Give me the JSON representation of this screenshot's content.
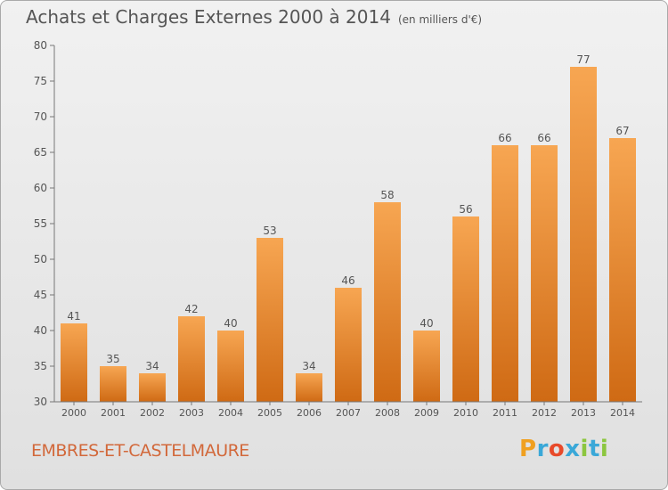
{
  "title": "Achats et Charges Externes 2000 à 2014",
  "subtitle": "(en milliers d'€)",
  "commune": "EMBRES-ET-CASTELMAURE",
  "brand": {
    "text": "Proxiti",
    "letters": [
      "P",
      "r",
      "o",
      "x",
      "i",
      "t",
      "i"
    ],
    "colors": [
      "#f0a020",
      "#3aa8d8",
      "#e84a2a",
      "#3aa8d8",
      "#8cc63f",
      "#3aa8d8",
      "#8cc63f"
    ]
  },
  "colors": {
    "bar_light": "#f7a652",
    "bar_dark": "#cf6a14",
    "axis": "#777777",
    "grid": "#c8c8c8",
    "text": "#555555"
  },
  "chart_data": {
    "type": "bar",
    "categories": [
      "2000",
      "2001",
      "2002",
      "2003",
      "2004",
      "2005",
      "2006",
      "2007",
      "2008",
      "2009",
      "2010",
      "2011",
      "2012",
      "2013",
      "2014"
    ],
    "values": [
      41,
      35,
      34,
      42,
      40,
      53,
      34,
      46,
      58,
      40,
      56,
      66,
      66,
      77,
      67
    ],
    "ylim": [
      30,
      80
    ],
    "yticks": [
      30,
      35,
      40,
      45,
      50,
      55,
      60,
      65,
      70,
      75,
      80
    ],
    "grid": false,
    "data_labels": true
  }
}
